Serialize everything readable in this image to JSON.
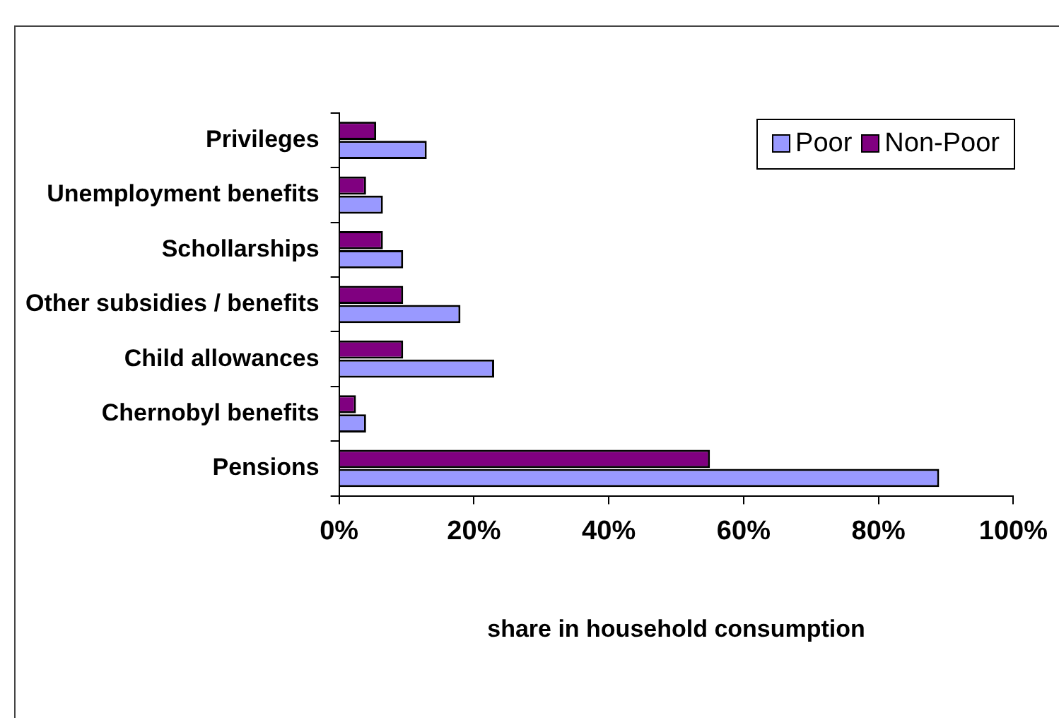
{
  "chart_data": {
    "type": "bar",
    "orientation": "horizontal",
    "xlabel": "share in household consumption",
    "categories": [
      "Privileges",
      "Unemployment benefits",
      "Schollarships",
      "Other subsidies / benefits",
      "Child allowances",
      "Chernobyl benefits",
      "Pensions"
    ],
    "series": [
      {
        "name": "Poor",
        "color": "#9999ff",
        "values": [
          13,
          6.5,
          9.5,
          18,
          23,
          4,
          89
        ]
      },
      {
        "name": "Non-Poor",
        "color": "#800080",
        "values": [
          5.5,
          4,
          6.5,
          9.5,
          9.5,
          2.5,
          55
        ]
      }
    ],
    "xlim": [
      0,
      100
    ],
    "xticks": [
      {
        "value": 0,
        "label": "0%"
      },
      {
        "value": 20,
        "label": "20%"
      },
      {
        "value": 40,
        "label": "40%"
      },
      {
        "value": 60,
        "label": "60%"
      },
      {
        "value": 80,
        "label": "80%"
      },
      {
        "value": 100,
        "label": "100%"
      }
    ],
    "grid": false,
    "legend": "top right"
  }
}
